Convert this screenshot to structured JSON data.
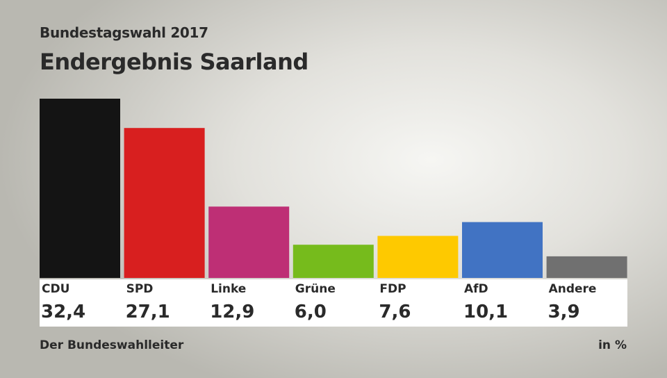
{
  "chart_data": {
    "type": "bar",
    "subtitle": "Bundestagswahl 2017",
    "title": "Endergebnis Saarland",
    "categories": [
      "CDU",
      "SPD",
      "Linke",
      "Grüne",
      "FDP",
      "AfD",
      "Andere"
    ],
    "values": [
      32.4,
      27.1,
      12.9,
      6.0,
      7.6,
      10.1,
      3.9
    ],
    "value_labels": [
      "32,4",
      "27,1",
      "12,9",
      "6,0",
      "7,6",
      "10,1",
      "3,9"
    ],
    "colors": [
      "#141414",
      "#d81f1f",
      "#be2f75",
      "#76bb1c",
      "#fec900",
      "#4173c3",
      "#707070"
    ],
    "unit": "in %",
    "source": "Der Bundeswahlleiter",
    "grid": false,
    "legend": "none"
  }
}
